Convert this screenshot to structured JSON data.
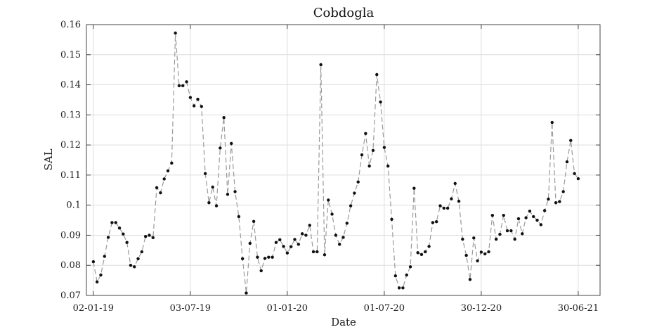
{
  "chart_data": {
    "type": "line",
    "title": "Cobdogla",
    "xlabel": "Date",
    "ylabel": "SAL",
    "ylim": [
      0.07,
      0.16
    ],
    "yticks": [
      0.07,
      0.08,
      0.09,
      0.1,
      0.11,
      0.12,
      0.13,
      0.14,
      0.15,
      0.16
    ],
    "ytick_labels": [
      "0.07",
      "0.08",
      "0.09",
      "0.1",
      "0.11",
      "0.12",
      "0.13",
      "0.14",
      "0.15",
      "0.16"
    ],
    "xlim": [
      "2018-12-20",
      "2021-08-10"
    ],
    "xticks": [
      "2019-01-02",
      "2019-07-03",
      "2020-01-01",
      "2020-07-01",
      "2020-12-30",
      "2021-06-30"
    ],
    "xtick_labels": [
      "02-01-19",
      "03-07-19",
      "01-01-20",
      "01-07-20",
      "30-12-20",
      "30-06-21"
    ],
    "grid": true,
    "line_style": "dashed",
    "colors": {
      "line": "#9a9a9a",
      "marker": "#111111",
      "grid": "#dedede",
      "axis": "#444444"
    },
    "series": [
      {
        "x": [
          "2019-01-02",
          "2019-01-09",
          "2019-01-16",
          "2019-01-23",
          "2019-01-30",
          "2019-02-06",
          "2019-02-13",
          "2019-02-20",
          "2019-02-27",
          "2019-03-06",
          "2019-03-13",
          "2019-03-20",
          "2019-03-27",
          "2019-04-03",
          "2019-04-10",
          "2019-04-17",
          "2019-04-24",
          "2019-05-01",
          "2019-05-08",
          "2019-05-15",
          "2019-05-22",
          "2019-05-29",
          "2019-06-05",
          "2019-06-12",
          "2019-06-19",
          "2019-06-26",
          "2019-07-03",
          "2019-07-10",
          "2019-07-17",
          "2019-07-24",
          "2019-07-31",
          "2019-08-07",
          "2019-08-14",
          "2019-08-21",
          "2019-08-28",
          "2019-09-04",
          "2019-09-11",
          "2019-09-18",
          "2019-09-25",
          "2019-10-02",
          "2019-10-09",
          "2019-10-16",
          "2019-10-23",
          "2019-10-30",
          "2019-11-06",
          "2019-11-13",
          "2019-11-20",
          "2019-11-27",
          "2019-12-04",
          "2019-12-11",
          "2019-12-18",
          "2019-12-25",
          "2020-01-01",
          "2020-01-08",
          "2020-01-15",
          "2020-01-22",
          "2020-01-29",
          "2020-02-05",
          "2020-02-12",
          "2020-02-19",
          "2020-02-26",
          "2020-03-04",
          "2020-03-11",
          "2020-03-18",
          "2020-03-25",
          "2020-04-01",
          "2020-04-08",
          "2020-04-15",
          "2020-04-22",
          "2020-04-29",
          "2020-05-06",
          "2020-05-13",
          "2020-05-20",
          "2020-05-27",
          "2020-06-03",
          "2020-06-10",
          "2020-06-17",
          "2020-06-24",
          "2020-07-01",
          "2020-07-08",
          "2020-07-15",
          "2020-07-22",
          "2020-07-29",
          "2020-08-05",
          "2020-08-12",
          "2020-08-19",
          "2020-08-26",
          "2020-09-02",
          "2020-09-09",
          "2020-09-16",
          "2020-09-23",
          "2020-09-30",
          "2020-10-07",
          "2020-10-14",
          "2020-10-21",
          "2020-10-28",
          "2020-11-04",
          "2020-11-11",
          "2020-11-18",
          "2020-11-25",
          "2020-12-02",
          "2020-12-09",
          "2020-12-16",
          "2020-12-23",
          "2020-12-30",
          "2021-01-06",
          "2021-01-13",
          "2021-01-20",
          "2021-01-27",
          "2021-02-03",
          "2021-02-10",
          "2021-02-17",
          "2021-02-24",
          "2021-03-03",
          "2021-03-10",
          "2021-03-17",
          "2021-03-24",
          "2021-03-31",
          "2021-04-07",
          "2021-04-14",
          "2021-04-21",
          "2021-04-28",
          "2021-05-05",
          "2021-05-12",
          "2021-05-19",
          "2021-05-26",
          "2021-06-02",
          "2021-06-09",
          "2021-06-16",
          "2021-06-23",
          "2021-06-30"
        ],
        "values": [
          0.0812,
          0.0745,
          0.0768,
          0.083,
          0.0893,
          0.0942,
          0.0942,
          0.0924,
          0.0904,
          0.0876,
          0.08,
          0.0795,
          0.0822,
          0.0845,
          0.0896,
          0.09,
          0.0892,
          0.1058,
          0.1041,
          0.1087,
          0.1114,
          0.114,
          0.1572,
          0.1397,
          0.1397,
          0.141,
          0.1358,
          0.133,
          0.1352,
          0.1328,
          0.1105,
          0.1008,
          0.106,
          0.0998,
          0.119,
          0.1291,
          0.1036,
          0.1205,
          0.1045,
          0.0962,
          0.0822,
          0.0708,
          0.0873,
          0.0946,
          0.0827,
          0.0782,
          0.0823,
          0.0827,
          0.0827,
          0.0876,
          0.0885,
          0.0863,
          0.0841,
          0.0862,
          0.0886,
          0.087,
          0.0905,
          0.09,
          0.0933,
          0.0845,
          0.0845,
          0.1467,
          0.0835,
          0.1017,
          0.097,
          0.09,
          0.087,
          0.0893,
          0.094,
          0.0998,
          0.104,
          0.1077,
          0.1167,
          0.1238,
          0.113,
          0.1182,
          0.1434,
          0.1343,
          0.1192,
          0.113,
          0.0953,
          0.0765,
          0.0725,
          0.0725,
          0.0768,
          0.0795,
          0.1056,
          0.0842,
          0.0836,
          0.0845,
          0.0863,
          0.0942,
          0.0945,
          0.0998,
          0.099,
          0.099,
          0.1021,
          0.1072,
          0.1013,
          0.0887,
          0.0833,
          0.0753,
          0.0891,
          0.0815,
          0.0844,
          0.0838,
          0.0845,
          0.0966,
          0.0887,
          0.0903,
          0.0966,
          0.0915,
          0.0915,
          0.0887,
          0.0955,
          0.0905,
          0.0958,
          0.098,
          0.0962,
          0.095,
          0.0935,
          0.0982,
          0.102,
          0.1275,
          0.1008,
          0.1012,
          0.1045,
          0.1144,
          0.1215,
          0.1105,
          0.1088
        ]
      }
    ]
  }
}
